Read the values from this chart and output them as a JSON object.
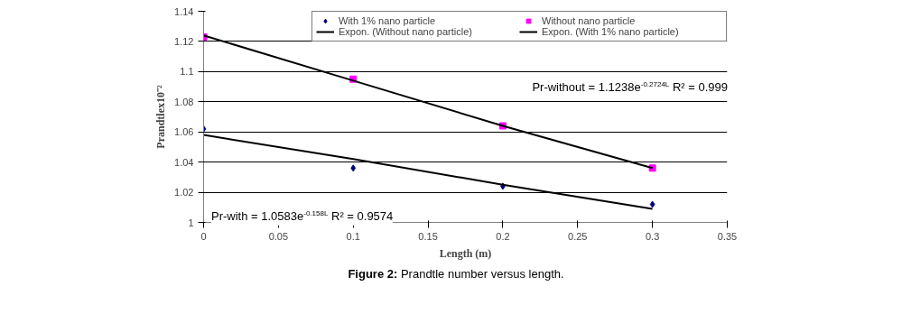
{
  "chart_data": {
    "type": "scatter",
    "xlabel": "Length (m)",
    "ylabel": "Prandtlex10⁻²",
    "xlim": [
      0,
      0.35
    ],
    "xticks": [
      0,
      0.05,
      0.1,
      0.15,
      0.2,
      0.25,
      0.3,
      0.35
    ],
    "ylim": [
      1,
      1.14
    ],
    "yticks": [
      1,
      1.02,
      1.04,
      1.06,
      1.08,
      1.1,
      1.12,
      1.14
    ],
    "grid": "y",
    "legend": "top",
    "series": [
      {
        "name": "With 1% nano particle",
        "marker": "diamond",
        "color": "#000080",
        "x": [
          0,
          0.1,
          0.2,
          0.3
        ],
        "values": [
          1.062,
          1.036,
          1.024,
          1.012
        ]
      },
      {
        "name": "Without nano particle",
        "marker": "square",
        "color": "#ff00ff",
        "x": [
          0,
          0.1,
          0.2,
          0.3
        ],
        "values": [
          1.123,
          1.095,
          1.064,
          1.036
        ]
      },
      {
        "name": "Expon. (Without nano particle)",
        "type": "line",
        "color": "#000000",
        "x": [
          0,
          0.1,
          0.2,
          0.3
        ],
        "values": [
          1.124,
          1.094,
          1.064,
          1.036
        ]
      },
      {
        "name": "Expon. (With 1% nano particle)",
        "type": "line",
        "color": "#000000",
        "x": [
          0,
          0.1,
          0.2,
          0.3
        ],
        "values": [
          1.058,
          1.042,
          1.025,
          1.009
        ]
      }
    ],
    "annotations": [
      "Pr-without = 1.1238e$^{-0.2724L}$ R² = 0.999",
      "Pr-with = 1.0583e$^{-0.158L}$ R² = 0.9574",
      "Figure 2:  Prandtle number versus length."
    ]
  }
}
